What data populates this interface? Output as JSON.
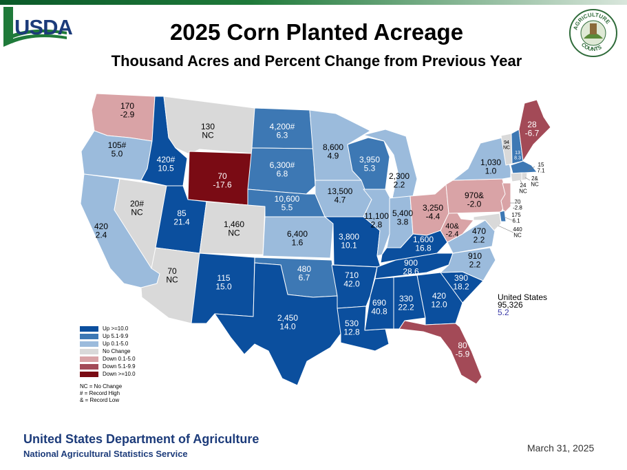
{
  "header": {
    "title": "2025 Corn Planted Acreage",
    "subtitle": "Thousand Acres and Percent Change from Previous Year"
  },
  "logos": {
    "usda": "USDA",
    "agriculture_counts": "AGRICULTURE COUNTS"
  },
  "colors": {
    "up_10": "#0b4f9e",
    "up_5_1": "#3d78b4",
    "up_0_1": "#9bbbdc",
    "no_change": "#d9d9d9",
    "down_0_1": "#d9a3a6",
    "down_5_1": "#a34a57",
    "down_10": "#7a0b14",
    "brand_blue": "#1c3b7a"
  },
  "states": {
    "WA": {
      "acres": "170",
      "change": "-2.9"
    },
    "OR": {
      "acres": "105#",
      "change": "5.0"
    },
    "CA": {
      "acres": "420",
      "change": "2.4"
    },
    "ID": {
      "acres": "420#",
      "change": "10.5"
    },
    "NV": {
      "acres": "20#",
      "change": "NC"
    },
    "MT": {
      "acres": "130",
      "change": "NC"
    },
    "WY": {
      "acres": "70",
      "change": "-17.6"
    },
    "UT": {
      "acres": "85",
      "change": "21.4"
    },
    "AZ": {
      "acres": "70",
      "change": "NC"
    },
    "CO": {
      "acres": "1,460",
      "change": "NC"
    },
    "NM": {
      "acres": "115",
      "change": "15.0"
    },
    "ND": {
      "acres": "4,200#",
      "change": "6.3"
    },
    "SD": {
      "acres": "6,300#",
      "change": "6.8"
    },
    "NE": {
      "acres": "10,600",
      "change": "5.5"
    },
    "KS": {
      "acres": "6,400",
      "change": "1.6"
    },
    "OK": {
      "acres": "480",
      "change": "6.7"
    },
    "TX": {
      "acres": "2,450",
      "change": "14.0"
    },
    "MN": {
      "acres": "8,600",
      "change": "4.9"
    },
    "IA": {
      "acres": "13,500",
      "change": "4.7"
    },
    "MO": {
      "acres": "3,800",
      "change": "10.1"
    },
    "AR": {
      "acres": "710",
      "change": "42.0"
    },
    "LA": {
      "acres": "530",
      "change": "12.8"
    },
    "WI": {
      "acres": "3,950",
      "change": "5.3"
    },
    "IL": {
      "acres": "11,100",
      "change": "2.8"
    },
    "MI": {
      "acres": "2,300",
      "change": "2.2"
    },
    "IN": {
      "acres": "5,400",
      "change": "3.8"
    },
    "OH": {
      "acres": "3,250",
      "change": "-4.4"
    },
    "KY": {
      "acres": "1,600",
      "change": "16.8"
    },
    "TN": {
      "acres": "900",
      "change": "28.6"
    },
    "MS": {
      "acres": "690",
      "change": "40.8"
    },
    "AL": {
      "acres": "330",
      "change": "22.2"
    },
    "GA": {
      "acres": "420",
      "change": "12.0"
    },
    "FL": {
      "acres": "80",
      "change": "-5.9"
    },
    "SC": {
      "acres": "390",
      "change": "18.2"
    },
    "NC": {
      "acres": "910",
      "change": "2.2"
    },
    "VA": {
      "acres": "470",
      "change": "2.2"
    },
    "WV": {
      "acres": "40&",
      "change": "-2.4"
    },
    "PA": {
      "acres": "970&",
      "change": "-2.0"
    },
    "NY": {
      "acres": "1,030",
      "change": "1.0"
    },
    "VT": {
      "acres": "94",
      "change": "NC"
    },
    "NH": {
      "acres": "13",
      "change": "8.3"
    },
    "ME": {
      "acres": "28",
      "change": "-6.7"
    },
    "MA": {
      "acres": "15",
      "change": "7.1"
    },
    "CT": {
      "acres": "24",
      "change": "NC"
    },
    "RI": {
      "acres": "2&",
      "change": "NC"
    },
    "NJ": {
      "acres": "70",
      "change": "-2.8"
    },
    "DE": {
      "acres": "175",
      "change": "6.1"
    },
    "MD": {
      "acres": "440",
      "change": "NC"
    }
  },
  "us_total": {
    "label": "United States",
    "acres": "95,326",
    "change": "5.2"
  },
  "legend": [
    {
      "label": "Up >=10.0",
      "color": "#0b4f9e"
    },
    {
      "label": "Up 5.1-9.9",
      "color": "#3d78b4"
    },
    {
      "label": "Up 0.1-5.0",
      "color": "#9bbbdc"
    },
    {
      "label": "No Change",
      "color": "#d9d9d9"
    },
    {
      "label": "Down 0.1-5.0",
      "color": "#d9a3a6"
    },
    {
      "label": "Down 5.1-9.9",
      "color": "#a34a57"
    },
    {
      "label": "Down >=10.0",
      "color": "#7a0b14"
    }
  ],
  "notes": [
    "NC = No Change",
    "# = Record High",
    "& = Record Low"
  ],
  "footer": {
    "agency": "United States Department of Agriculture",
    "service": "National Agricultural Statistics Service",
    "date": "March 31, 2025"
  }
}
